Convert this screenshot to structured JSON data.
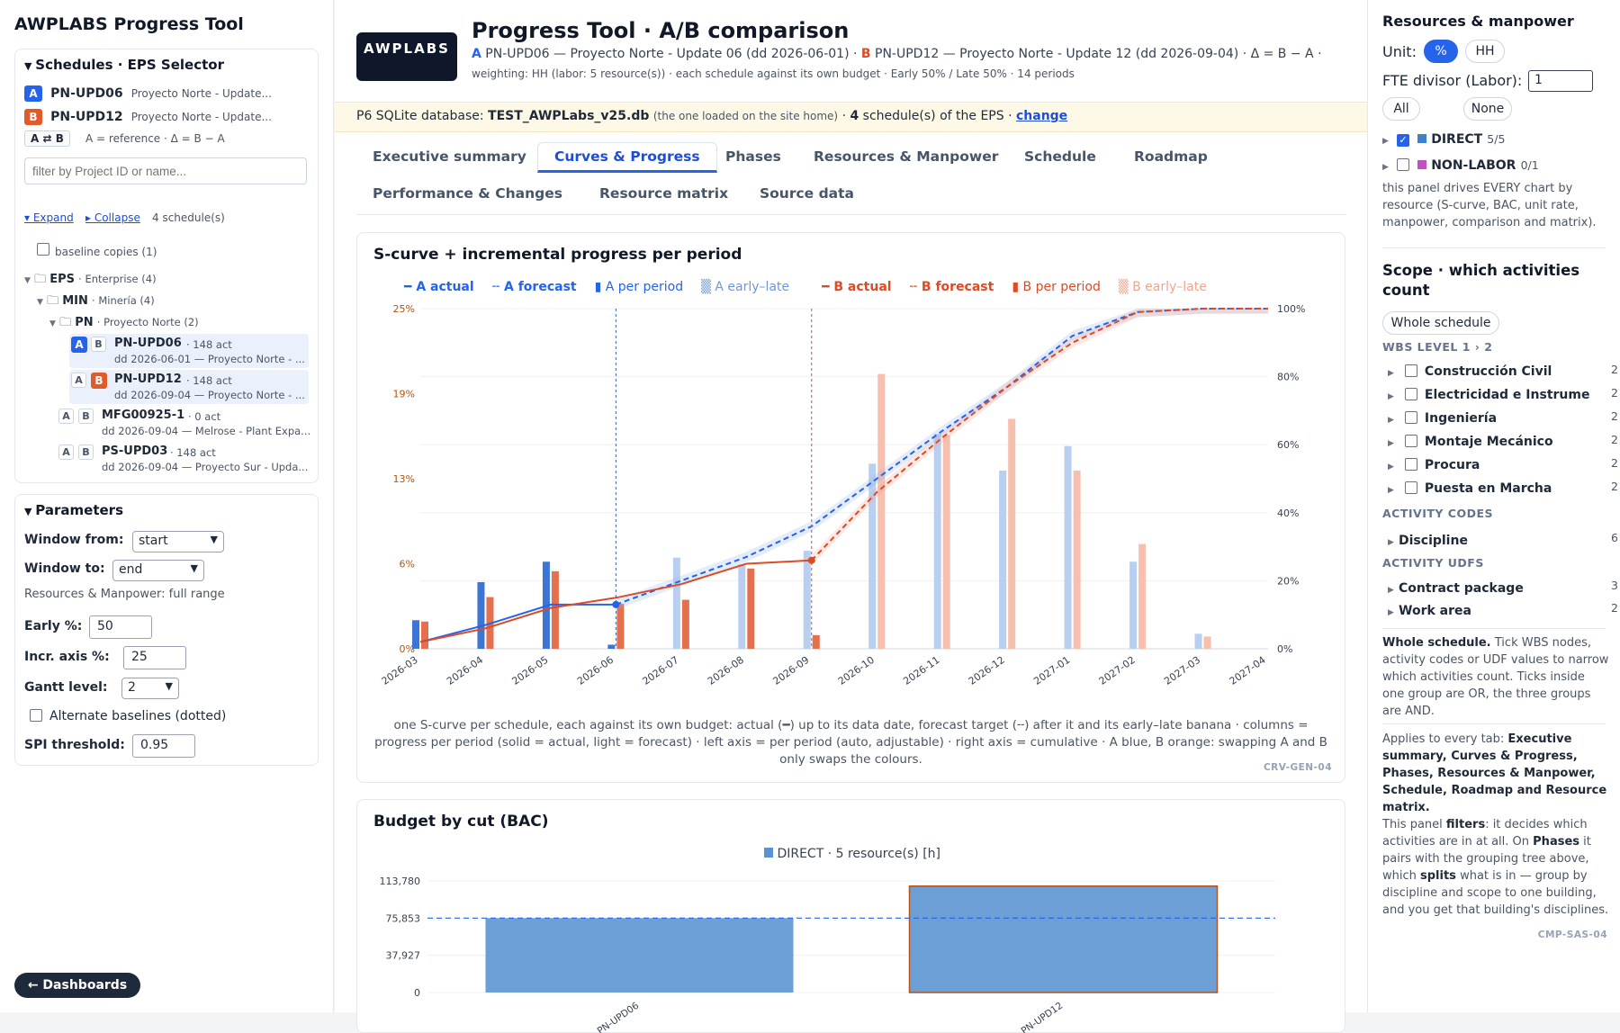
{
  "sidebar": {
    "app_title": "AWPLABS  Progress Tool",
    "eps_panel": {
      "title": "Schedules · EPS Selector",
      "sel_a": {
        "pill": "A",
        "id": "PN-UPD06",
        "name": "Proyecto Norte - Update..."
      },
      "sel_b": {
        "pill": "B",
        "id": "PN-UPD12",
        "name": "Proyecto Norte - Update..."
      },
      "swap_label": "A ⇄ B",
      "swap_note": "A = reference · Δ = B − A",
      "filter_placeholder": "filter by Project ID or name...",
      "expand": "▾ Expand",
      "collapse": "▸ Collapse",
      "count": "4 schedule(s)",
      "baseline": "baseline copies (1)",
      "eps": {
        "name": "EPS",
        "sub": "· Enterprise (4)"
      },
      "min": {
        "name": "MIN",
        "sub": "· Minería (4)"
      },
      "pn": {
        "name": "PN",
        "sub": "· Proyecto Norte (2)"
      },
      "tree": [
        {
          "a": "A",
          "b": "B",
          "id": "PN-UPD06",
          "acts": "· 148 act",
          "sub": "dd 2026-06-01 — Proyecto Norte - ..."
        },
        {
          "a": "A",
          "b": "B",
          "id": "PN-UPD12",
          "acts": "· 148 act",
          "sub": "dd 2026-09-04 — Proyecto Norte - ..."
        },
        {
          "a": "A",
          "b": "B",
          "id": "MFG00925-1",
          "acts": "· 0 act",
          "sub": "dd 2026-09-04 — Melrose - Plant Expa..."
        },
        {
          "a": "A",
          "b": "B",
          "id": "PS-UPD03",
          "acts": "· 148 act",
          "sub": "dd 2026-09-04 — Proyecto Sur - Upda..."
        }
      ]
    },
    "params": {
      "title": "Parameters",
      "window_from_label": "Window from:",
      "window_from": "start",
      "window_to_label": "Window to:",
      "window_to": "end",
      "rm_note": "Resources & Manpower: full range",
      "early_label": "Early %:",
      "early": "50",
      "incr_label": "Incr. axis %:",
      "incr": "25",
      "gantt_label": "Gantt level:",
      "gantt": "2",
      "alt_baselines": "Alternate baselines (dotted)",
      "spi_label": "SPI threshold:",
      "spi": "0.95"
    },
    "dash_button": "← Dashboards"
  },
  "header": {
    "logo": "AWPLABS",
    "title": "Progress Tool · A/B comparison",
    "a_tag": "A",
    "a_desc": "PN-UPD06 — Proyecto Norte - Update 06 (dd 2026-06-01) ·",
    "b_tag": "B",
    "b_desc": "PN-UPD12 — Proyecto Norte - Update 12 (dd 2026-09-04) · Δ = B − A ·",
    "subline": "weighting: HH (labor: 5 resource(s)) · each schedule against its own budget · Early 50% / Late 50% · 14 periods"
  },
  "banner": {
    "prefix": "P6 SQLite database:",
    "db": "TEST_AWPLabs_v25.db",
    "note": "(the one loaded on the site home)",
    "mid": "·",
    "count": "4",
    "suffix": "schedule(s) of the EPS ·",
    "change": "change"
  },
  "tabs": [
    "Executive summary",
    "Curves & Progress",
    "Phases",
    "Resources & Manpower",
    "Schedule",
    "Roadmap",
    "Performance & Changes",
    "Resource matrix",
    "Source data"
  ],
  "scurve": {
    "title": "S-curve + incremental progress per period",
    "legend": [
      {
        "sym": "━",
        "label": "A actual",
        "color": "#2563eb",
        "bold": true
      },
      {
        "sym": "╌",
        "label": "A forecast",
        "color": "#2563eb",
        "bold": true
      },
      {
        "sym": "▮",
        "label": "A per period",
        "color": "#2563eb",
        "bold": false
      },
      {
        "sym": "▒",
        "label": "A early–late",
        "color": "#93b4e8",
        "bold": false
      },
      {
        "sym": "━",
        "label": "B actual",
        "color": "#dc4a26",
        "bold": true
      },
      {
        "sym": "╌",
        "label": "B forecast",
        "color": "#dc4a26",
        "bold": true
      },
      {
        "sym": "▮",
        "label": "B per period",
        "color": "#dc4a26",
        "bold": false
      },
      {
        "sym": "▒",
        "label": "B early–late",
        "color": "#f0a58e",
        "bold": false
      }
    ],
    "caption": "one S-curve per schedule, each against its own budget: actual (━) up to its data date, forecast target (╌) after it and its early–late banana · columns = progress per period (solid = actual, light = forecast) · left axis = per period (auto, adjustable) · right axis = cumulative · A blue, B orange: swapping A and B only swaps the colours.",
    "code": "CRV-GEN-04"
  },
  "chart_data": [
    {
      "type": "bar",
      "title": "S-curve + incremental progress per period",
      "categories": [
        "2026-03",
        "2026-04",
        "2026-05",
        "2026-06",
        "2026-07",
        "2026-08",
        "2026-09",
        "2026-10",
        "2026-11",
        "2026-12",
        "2027-01",
        "2027-02",
        "2027-03",
        "2027-04"
      ],
      "left_axis_ticks": [
        "0%",
        "6%",
        "13%",
        "19%",
        "25%"
      ],
      "right_axis_ticks": [
        "0%",
        "20%",
        "40%",
        "60%",
        "80%",
        "100%"
      ],
      "ylim_left": [
        0,
        25
      ],
      "ylim_right": [
        0,
        100
      ],
      "data_dates": {
        "A": "2026-06",
        "B": "2026-09"
      },
      "series": [
        {
          "name": "A per period",
          "values": [
            2.1,
            4.9,
            6.4,
            0.3,
            6.7,
            6.2,
            7.2,
            13.6,
            15.8,
            13.1,
            14.9,
            6.4,
            1.1,
            0
          ]
        },
        {
          "name": "B per period",
          "values": [
            2.0,
            3.8,
            5.7,
            3.3,
            3.6,
            5.9,
            1.0,
            20.2,
            15.7,
            16.9,
            13.1,
            7.7,
            0.9,
            0
          ]
        },
        {
          "name": "A actual",
          "values": [
            2,
            7,
            13,
            13,
            null,
            null,
            null,
            null,
            null,
            null,
            null,
            null,
            null,
            null
          ]
        },
        {
          "name": "A forecast",
          "values": [
            null,
            null,
            null,
            13,
            20,
            27,
            36,
            50,
            64,
            77,
            92,
            99,
            100,
            100
          ]
        },
        {
          "name": "B actual",
          "values": [
            2,
            6,
            12,
            15,
            19,
            25,
            26,
            null,
            null,
            null,
            null,
            null,
            null,
            null
          ]
        },
        {
          "name": "B forecast",
          "values": [
            null,
            null,
            null,
            null,
            null,
            null,
            26,
            46,
            62,
            77,
            90,
            99,
            100,
            100
          ]
        }
      ]
    },
    {
      "type": "bar",
      "title": "Budget by cut (BAC)",
      "legend": "DIRECT · 5 resource(s) [h]",
      "categories": [
        "PN-UPD06",
        "PN-UPD12"
      ],
      "values": [
        75853,
        108500
      ],
      "reference_line": 75853,
      "y_ticks": [
        "0",
        "37,927",
        "75,853",
        "113,780"
      ],
      "ylim": [
        0,
        113780
      ]
    }
  ],
  "bac": {
    "title": "Budget by cut (BAC)",
    "legend": "DIRECT · 5 resource(s) [h]",
    "x_labels": [
      "PN-UPD06",
      "PN-UPD12"
    ]
  },
  "resources": {
    "title": "Resources & manpower",
    "unit_label": "Unit:",
    "unit_pct": "%",
    "unit_hh": "HH",
    "fte_label": "FTE divisor (Labor):",
    "fte_value": "1",
    "all": "All",
    "none": "None",
    "direct": {
      "label": "DIRECT",
      "count": "5/5",
      "color": "#3b82c8"
    },
    "nonlabor": {
      "label": "NON-LABOR",
      "count": "0/1",
      "color": "#c04fc0"
    },
    "note": "this panel drives EVERY chart by resource (S-curve, BAC, unit rate, manpower, comparison and matrix)."
  },
  "scope": {
    "title": "Scope · which activities count",
    "whole_btn": "Whole schedule",
    "wbs_label": "WBS LEVEL 1 › 2",
    "wbs": [
      {
        "label": "Construcción Civil",
        "count": "2"
      },
      {
        "label": "Electricidad e Instrume",
        "count": "2"
      },
      {
        "label": "Ingeniería",
        "count": "2"
      },
      {
        "label": "Montaje Mecánico",
        "count": "2"
      },
      {
        "label": "Procura",
        "count": "2"
      },
      {
        "label": "Puesta en Marcha",
        "count": "2"
      }
    ],
    "codes_label": "ACTIVITY CODES",
    "codes": [
      {
        "label": "Discipline",
        "count": "6"
      }
    ],
    "udfs_label": "ACTIVITY UDFS",
    "udfs": [
      {
        "label": "Contract package",
        "count": "3"
      },
      {
        "label": "Work area",
        "count": "2"
      }
    ],
    "whole_title": "Whole schedule.",
    "whole_text": "Tick WBS nodes, activity codes or UDF values to narrow which activities count. Ticks inside one group are OR, the three groups are AND.",
    "applies_prefix": "Applies to every tab:",
    "applies_tabs": "Executive summary, Curves & Progress, Phases, Resources & Manpower, Schedule, Roadmap and Resource matrix.",
    "filters_text_1": "This panel",
    "filters_word": "filters",
    "filters_text_2": ": it decides which activities are in at all. On",
    "phases_word": "Phases",
    "filters_text_3": "it pairs with the grouping tree above, which",
    "splits_word": "splits",
    "filters_text_4": "what is in — group by discipline and scope to one building, and you get that building's disciplines.",
    "code": "CMP-SAS-04"
  }
}
